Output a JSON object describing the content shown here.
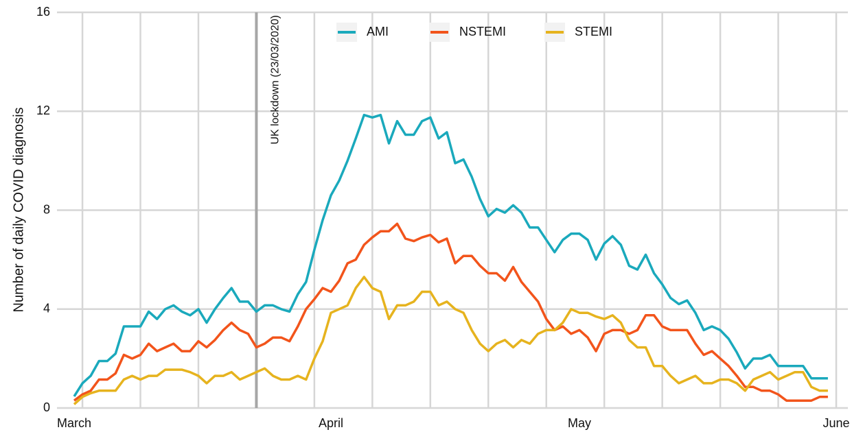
{
  "chart_data": {
    "type": "line",
    "ylabel": "Number of daily COVID diagnosis",
    "categories": [
      "March",
      null,
      null,
      null,
      null,
      null,
      null,
      null,
      null,
      null,
      null,
      null,
      null,
      null,
      null,
      null,
      null,
      null,
      null,
      null,
      null,
      null,
      null,
      null,
      null,
      null,
      null,
      null,
      null,
      null,
      null,
      "April",
      null,
      null,
      null,
      null,
      null,
      null,
      null,
      null,
      null,
      null,
      null,
      null,
      null,
      null,
      null,
      null,
      null,
      null,
      null,
      null,
      null,
      null,
      null,
      null,
      null,
      null,
      null,
      null,
      null,
      "May",
      null,
      null,
      null,
      null,
      null,
      null,
      null,
      null,
      null,
      null,
      null,
      null,
      null,
      null,
      null,
      null,
      null,
      null,
      null,
      null,
      null,
      null,
      null,
      null,
      null,
      null,
      null,
      null,
      null,
      null,
      "June"
    ],
    "series": [
      {
        "name": "AMI",
        "color": "#1aa9bc",
        "values": [
          0.47,
          1.0,
          1.3,
          1.9,
          1.9,
          2.2,
          3.3,
          3.3,
          3.3,
          3.9,
          3.6,
          4.0,
          4.15,
          3.9,
          3.75,
          4.0,
          3.45,
          4.0,
          4.45,
          4.85,
          4.3,
          4.3,
          3.9,
          4.15,
          4.15,
          4.0,
          3.9,
          4.6,
          5.1,
          6.4,
          7.6,
          8.6,
          9.2,
          10.0,
          10.9,
          11.85,
          11.75,
          11.85,
          10.7,
          11.6,
          11.05,
          11.05,
          11.6,
          11.75,
          10.9,
          11.15,
          9.9,
          10.05,
          9.35,
          8.45,
          7.75,
          8.05,
          7.9,
          8.2,
          7.9,
          7.3,
          7.3,
          6.8,
          6.3,
          6.8,
          7.05,
          7.05,
          6.8,
          6.0,
          6.65,
          6.95,
          6.6,
          5.75,
          5.6,
          6.2,
          5.45,
          5.0,
          4.45,
          4.2,
          4.35,
          3.85,
          3.15,
          3.3,
          3.15,
          2.8,
          2.25,
          1.6,
          2.0,
          2.0,
          2.15,
          1.7,
          1.7,
          1.7,
          1.7,
          1.2,
          1.2,
          1.2,
          null
        ]
      },
      {
        "name": "NSTEMI",
        "color": "#f2541b",
        "values": [
          0.3,
          0.55,
          0.7,
          1.15,
          1.15,
          1.4,
          2.15,
          2.0,
          2.15,
          2.6,
          2.3,
          2.45,
          2.6,
          2.3,
          2.3,
          2.7,
          2.45,
          2.75,
          3.15,
          3.45,
          3.15,
          3.0,
          2.45,
          2.6,
          2.85,
          2.85,
          2.7,
          3.3,
          4.0,
          4.4,
          4.85,
          4.7,
          5.15,
          5.85,
          6.0,
          6.6,
          6.9,
          7.15,
          7.15,
          7.45,
          6.85,
          6.75,
          6.9,
          7.0,
          6.7,
          6.85,
          5.85,
          6.15,
          6.15,
          5.75,
          5.45,
          5.45,
          5.15,
          5.7,
          5.1,
          4.7,
          4.3,
          3.6,
          3.15,
          3.3,
          3.0,
          3.15,
          2.85,
          2.3,
          3.0,
          3.15,
          3.15,
          3.0,
          3.15,
          3.75,
          3.75,
          3.3,
          3.15,
          3.15,
          3.15,
          2.6,
          2.15,
          2.3,
          2.0,
          1.7,
          1.3,
          0.85,
          0.85,
          0.7,
          0.7,
          0.55,
          0.3,
          0.3,
          0.3,
          0.3,
          0.45,
          0.45,
          null
        ]
      },
      {
        "name": "STEMI",
        "color": "#e6b31e",
        "values": [
          0.15,
          0.45,
          0.6,
          0.7,
          0.7,
          0.7,
          1.15,
          1.3,
          1.15,
          1.3,
          1.3,
          1.55,
          1.55,
          1.55,
          1.45,
          1.3,
          1.0,
          1.3,
          1.3,
          1.45,
          1.15,
          1.3,
          1.45,
          1.6,
          1.3,
          1.15,
          1.15,
          1.3,
          1.15,
          2.0,
          2.7,
          3.85,
          4.0,
          4.15,
          4.85,
          5.3,
          4.85,
          4.7,
          3.6,
          4.15,
          4.15,
          4.3,
          4.7,
          4.7,
          4.15,
          4.3,
          4.0,
          3.85,
          3.15,
          2.6,
          2.3,
          2.6,
          2.75,
          2.45,
          2.75,
          2.6,
          3.0,
          3.15,
          3.15,
          3.45,
          4.0,
          3.85,
          3.85,
          3.7,
          3.6,
          3.75,
          3.45,
          2.75,
          2.45,
          2.45,
          1.7,
          1.7,
          1.3,
          1.0,
          1.15,
          1.3,
          1.0,
          1.0,
          1.15,
          1.15,
          1.0,
          0.7,
          1.15,
          1.3,
          1.45,
          1.15,
          1.3,
          1.45,
          1.45,
          0.85,
          0.7,
          0.7,
          null
        ]
      }
    ],
    "annotations": [
      {
        "text": "UK lockdown (23/03/2020)",
        "x": 22
      }
    ],
    "ylim": [
      0,
      16
    ],
    "yticks": [
      0,
      4,
      8,
      12,
      16
    ],
    "grid": true,
    "legend": "top"
  }
}
